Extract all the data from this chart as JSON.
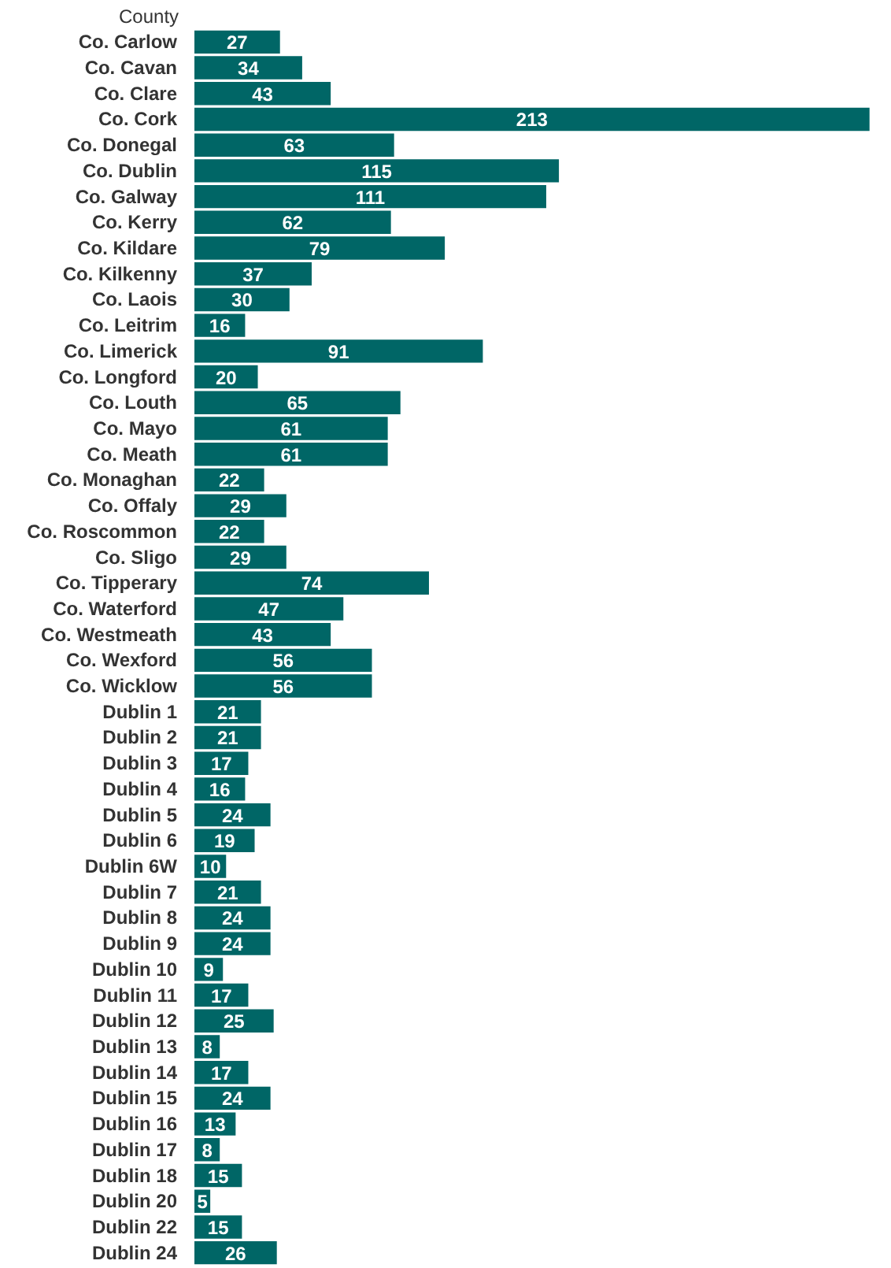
{
  "chart_data": {
    "type": "bar",
    "orientation": "horizontal",
    "ylabel": "County",
    "color": "#006666",
    "data_labels": true,
    "grid": false,
    "categories": [
      "Co. Carlow",
      "Co. Cavan",
      "Co. Clare",
      "Co. Cork",
      "Co. Donegal",
      "Co. Dublin",
      "Co. Galway",
      "Co. Kerry",
      "Co. Kildare",
      "Co. Kilkenny",
      "Co. Laois",
      "Co. Leitrim",
      "Co. Limerick",
      "Co. Longford",
      "Co. Louth",
      "Co. Mayo",
      "Co. Meath",
      "Co. Monaghan",
      "Co. Offaly",
      "Co. Roscommon",
      "Co. Sligo",
      "Co. Tipperary",
      "Co. Waterford",
      "Co. Westmeath",
      "Co. Wexford",
      "Co. Wicklow",
      "Dublin 1",
      "Dublin 2",
      "Dublin 3",
      "Dublin 4",
      "Dublin 5",
      "Dublin 6",
      "Dublin 6W",
      "Dublin 7",
      "Dublin 8",
      "Dublin 9",
      "Dublin 10",
      "Dublin 11",
      "Dublin 12",
      "Dublin 13",
      "Dublin 14",
      "Dublin 15",
      "Dublin 16",
      "Dublin 17",
      "Dublin 18",
      "Dublin 20",
      "Dublin 22",
      "Dublin 24"
    ],
    "values": [
      27,
      34,
      43,
      213,
      63,
      115,
      111,
      62,
      79,
      37,
      30,
      16,
      91,
      20,
      65,
      61,
      61,
      22,
      29,
      22,
      29,
      74,
      47,
      43,
      56,
      56,
      21,
      21,
      17,
      16,
      24,
      19,
      10,
      21,
      24,
      24,
      9,
      17,
      25,
      8,
      17,
      24,
      13,
      8,
      15,
      5,
      15,
      26
    ]
  }
}
